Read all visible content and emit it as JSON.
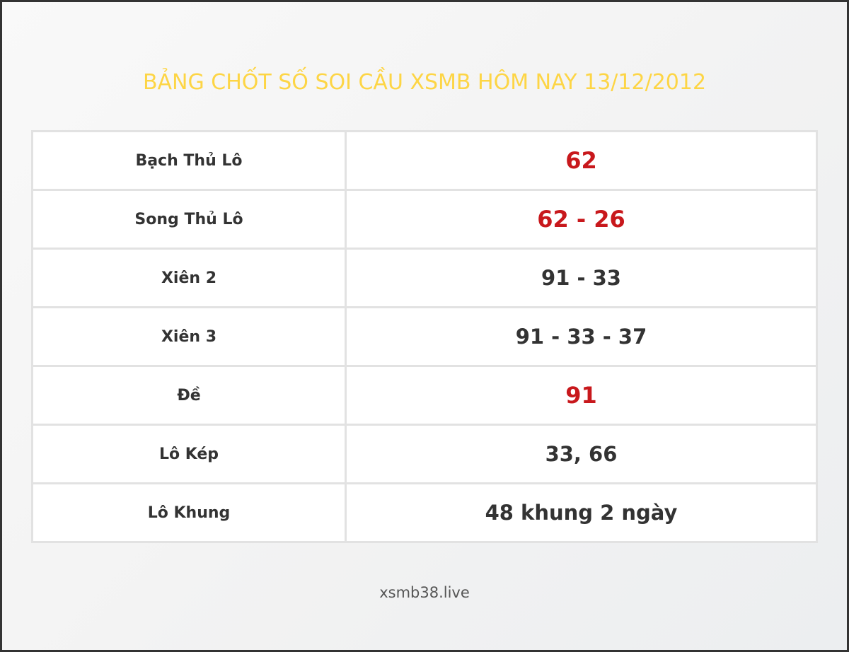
{
  "title": "BẢNG CHỐT SỐ SOI CẦU XSMB HÔM NAY 13/12/2012",
  "rows": [
    {
      "label": "Bạch Thủ Lô",
      "value": "62",
      "highlight": true
    },
    {
      "label": "Song Thủ Lô",
      "value": "62 - 26",
      "highlight": true
    },
    {
      "label": "Xiên 2",
      "value": "91 - 33",
      "highlight": false
    },
    {
      "label": "Xiên 3",
      "value": "91 - 33 - 37",
      "highlight": false
    },
    {
      "label": "Đề",
      "value": "91",
      "highlight": true
    },
    {
      "label": "Lô Kép",
      "value": "33, 66",
      "highlight": false
    },
    {
      "label": "Lô Khung",
      "value": "48 khung 2 ngày",
      "highlight": false
    }
  ],
  "footer": "xsmb38.live",
  "colors": {
    "title": "#fdd545",
    "highlight": "#c8181c",
    "text": "#333333"
  }
}
